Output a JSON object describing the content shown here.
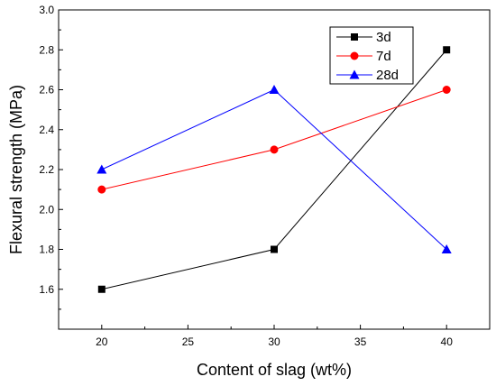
{
  "chart_data": {
    "type": "line",
    "xlabel": "Content of slag  (wt%)",
    "ylabel": "Flexural strength (MPa)",
    "xlim": [
      17.5,
      42.5
    ],
    "ylim": [
      1.4,
      3.0
    ],
    "xticks": [
      20,
      25,
      30,
      35,
      40
    ],
    "yticks": [
      1.6,
      1.8,
      2.0,
      2.2,
      2.4,
      2.6,
      2.8,
      3.0
    ],
    "x": [
      20,
      30,
      40
    ],
    "series": [
      {
        "name": "3d",
        "values": [
          1.6,
          1.8,
          2.8
        ],
        "color": "#000000",
        "marker": "square"
      },
      {
        "name": "7d",
        "values": [
          2.1,
          2.3,
          2.6
        ],
        "color": "#ff0000",
        "marker": "circle"
      },
      {
        "name": "28d",
        "values": [
          2.2,
          2.6,
          1.8
        ],
        "color": "#0000ff",
        "marker": "triangle"
      }
    ],
    "legend_position": "top-right",
    "grid": false
  }
}
